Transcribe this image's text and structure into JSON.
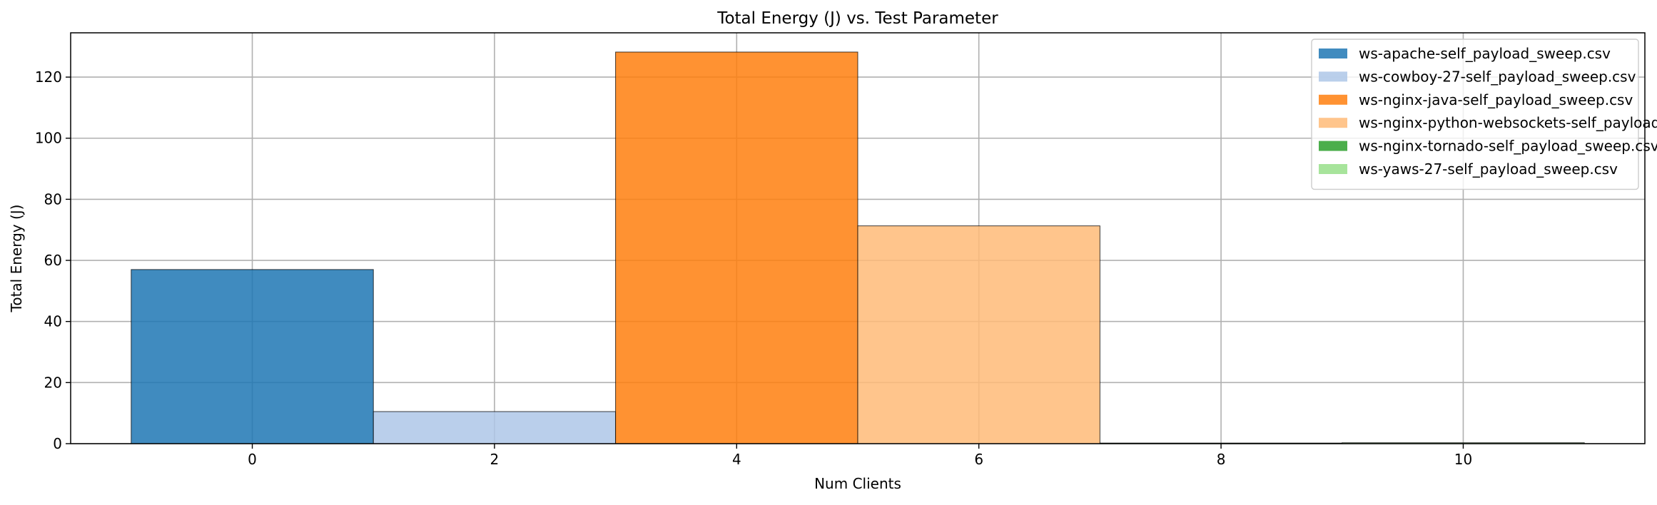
{
  "chart_data": {
    "type": "bar",
    "title": "Total Energy (J) vs. Test Parameter",
    "xlabel": "Num Clients",
    "ylabel": "Total Energy (J)",
    "xlim": [
      -1.5,
      11.5
    ],
    "ylim": [
      0,
      134.5
    ],
    "xticks": [
      0,
      2,
      4,
      6,
      8,
      10
    ],
    "yticks": [
      0,
      20,
      40,
      60,
      80,
      100,
      120
    ],
    "grid": true,
    "legend_position": "top-right",
    "bar_width": 2,
    "series": [
      {
        "name": "ws-apache-self_payload_sweep.csv",
        "color": "#1f77b4",
        "x": [
          0
        ],
        "values": [
          57
        ]
      },
      {
        "name": "ws-cowboy-27-self_payload_sweep.csv",
        "color": "#aec7e8",
        "x": [
          2
        ],
        "values": [
          10.5
        ]
      },
      {
        "name": "ws-nginx-java-self_payload_sweep.csv",
        "color": "#ff7f0e",
        "x": [
          4
        ],
        "values": [
          128.2
        ]
      },
      {
        "name": "ws-nginx-python-websockets-self_payload_sweep.csv",
        "color": "#ffbb78",
        "x": [
          6
        ],
        "values": [
          71.3
        ]
      },
      {
        "name": "ws-nginx-tornado-self_payload_sweep.csv",
        "color": "#2ca02c",
        "x": [
          8
        ],
        "values": [
          0.2
        ]
      },
      {
        "name": "ws-yaws-27-self_payload_sweep.csv",
        "color": "#98df8a",
        "x": [
          10
        ],
        "values": [
          0.3
        ]
      }
    ]
  }
}
